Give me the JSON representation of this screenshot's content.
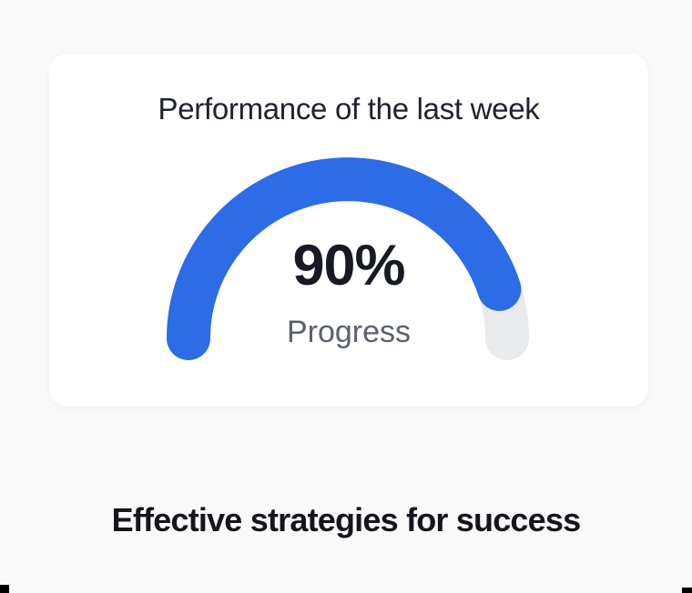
{
  "page": {
    "background_color": "#f9f9fa"
  },
  "card": {
    "title": "Performance of the last week",
    "background_color": "#ffffff"
  },
  "chart_data": {
    "type": "gauge",
    "title": "Performance of the last week",
    "value": 90,
    "max": 100,
    "unit": "%",
    "center_value_label": "90%",
    "center_sub_label": "Progress",
    "arc_span_degrees": 180,
    "fill_color": "#2d6ce7",
    "track_color": "#e9eaec",
    "value_text_color": "#171a23",
    "sub_label_color": "#5b616b"
  },
  "heading": {
    "text": "Effective strategies for success"
  },
  "decorations": {
    "corner_mark_color": "#000000"
  }
}
